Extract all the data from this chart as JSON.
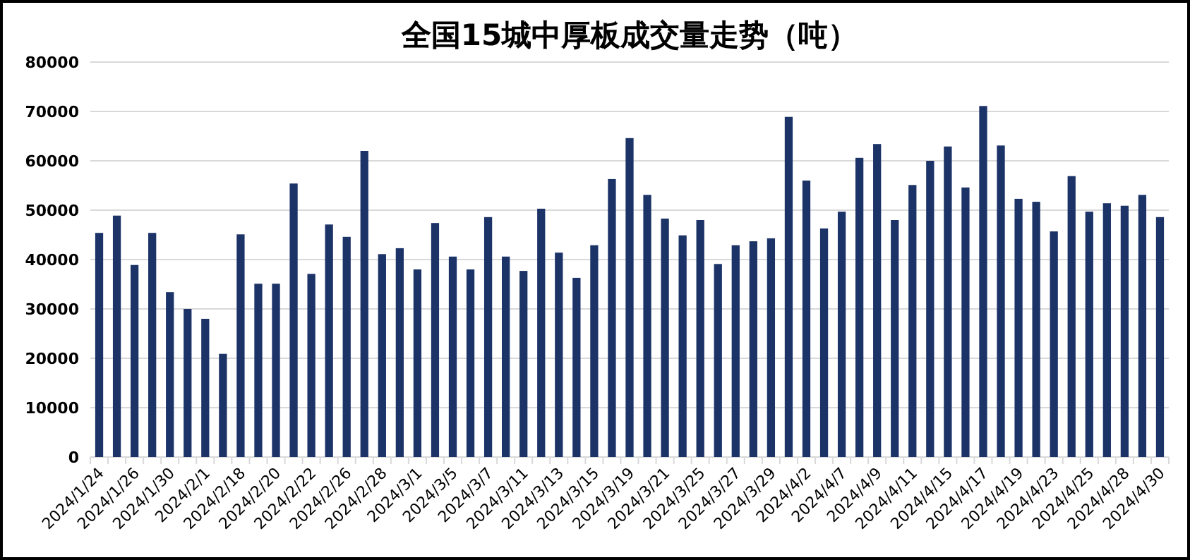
{
  "chart_data": {
    "type": "bar",
    "title": "全国15城中厚板成交量走势（吨）",
    "categories": [
      "2024/1/24",
      null,
      "2024/1/26",
      null,
      "2024/1/30",
      null,
      "2024/2/1",
      null,
      "2024/2/18",
      null,
      "2024/2/20",
      null,
      "2024/2/22",
      null,
      "2024/2/26",
      null,
      "2024/2/28",
      null,
      "2024/3/1",
      null,
      "2024/3/5",
      null,
      "2024/3/7",
      null,
      "2024/3/11",
      null,
      "2024/3/13",
      null,
      "2024/3/15",
      null,
      "2024/3/19",
      null,
      "2024/3/21",
      null,
      "2024/3/25",
      null,
      "2024/3/27",
      null,
      "2024/3/29",
      null,
      "2024/4/2",
      null,
      "2024/4/7",
      null,
      "2024/4/9",
      null,
      "2024/4/11",
      null,
      "2024/4/15",
      null,
      "2024/4/17",
      null,
      "2024/4/19",
      null,
      "2024/4/23",
      null,
      "2024/4/25",
      null,
      "2024/4/28",
      null,
      "2024/4/30"
    ],
    "values": [
      45400,
      48900,
      38900,
      45400,
      33400,
      30000,
      28000,
      20900,
      45100,
      35100,
      35100,
      55400,
      37100,
      47100,
      44600,
      62000,
      41100,
      42300,
      38000,
      47400,
      40600,
      38000,
      48600,
      40600,
      37700,
      50300,
      41400,
      36300,
      42900,
      56300,
      64600,
      53100,
      48300,
      44900,
      48000,
      39100,
      42900,
      43700,
      44300,
      68900,
      56000,
      46300,
      49700,
      60600,
      63400,
      48000,
      55100,
      60000,
      62900,
      54600,
      71100,
      63100,
      52300,
      51700,
      45700,
      56900,
      49700,
      51400,
      50900,
      53100,
      48600
    ],
    "color": "#1c3368",
    "ylim": [
      0,
      80000
    ],
    "yticks": [
      0,
      10000,
      20000,
      30000,
      40000,
      50000,
      60000,
      70000,
      80000
    ],
    "grid": "y"
  }
}
